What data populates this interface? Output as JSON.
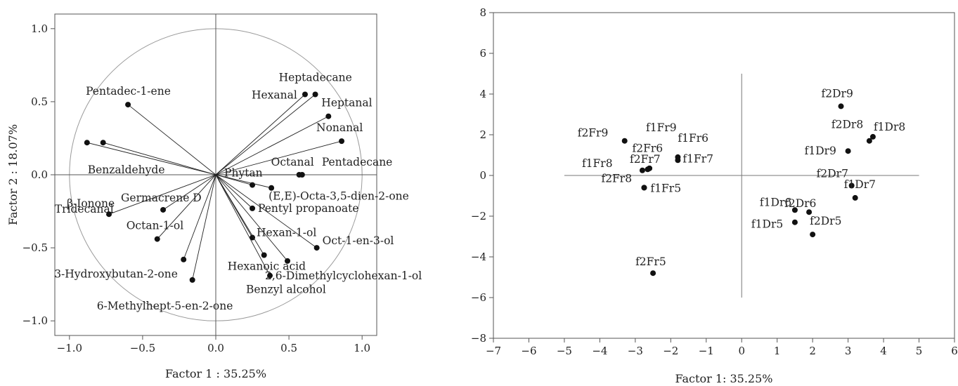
{
  "chart_data": [
    {
      "type": "scatter",
      "xlabel": "Factor 1 : 35.25%",
      "ylabel": "Factor 2 : 18.07%",
      "xlim": [
        -1.1,
        1.1
      ],
      "ylim": [
        -1.1,
        1.1
      ],
      "xticks": [
        "−1.0",
        "−0.5",
        "0.0",
        "0.5",
        "1.0"
      ],
      "xtick_values": [
        -1.0,
        -0.5,
        0.0,
        0.5,
        1.0
      ],
      "yticks": [
        "1.0",
        "0.5",
        "0.0",
        "−0.5",
        "−1.0"
      ],
      "ytick_values": [
        1.0,
        0.5,
        0.0,
        -0.5,
        -1.0
      ],
      "unit_circle": true,
      "vectors_from_origin": true,
      "points": [
        {
          "label": "Pentadec-1-ene",
          "x": -0.6,
          "y": 0.48
        },
        {
          "label": "Benzaldehyde",
          "x": -0.77,
          "y": 0.22
        },
        {
          "label": "Tridecanal",
          "x": -0.88,
          "y": 0.22
        },
        {
          "label": "β-Ionone",
          "x": -0.73,
          "y": -0.27
        },
        {
          "label": "Germacrene D",
          "x": -0.36,
          "y": -0.24
        },
        {
          "label": "Octan-1-ol",
          "x": -0.4,
          "y": -0.44
        },
        {
          "label": "3-Hydroxybutan-2-one",
          "x": -0.22,
          "y": -0.58
        },
        {
          "label": "6-Methylhept-5-en-2-one",
          "x": -0.16,
          "y": -0.72
        },
        {
          "label": "Hexanal",
          "x": 0.61,
          "y": 0.55
        },
        {
          "label": "Heptadecane",
          "x": 0.68,
          "y": 0.55
        },
        {
          "label": "Heptanal",
          "x": 0.77,
          "y": 0.4
        },
        {
          "label": "Nonanal",
          "x": 0.86,
          "y": 0.23
        },
        {
          "label": "Octanal",
          "x": 0.57,
          "y": 0.0
        },
        {
          "label": "Pentadecane",
          "x": 0.59,
          "y": 0.0
        },
        {
          "label": "Phytan",
          "x": 0.25,
          "y": -0.07
        },
        {
          "label": "(E,E)-Octa-3,5-dien-2-one",
          "x": 0.38,
          "y": -0.09
        },
        {
          "label": "Pentyl propanoate",
          "x": 0.25,
          "y": -0.23
        },
        {
          "label": "Hexan-1-ol",
          "x": 0.25,
          "y": -0.43
        },
        {
          "label": "Oct-1-en-3-ol",
          "x": 0.69,
          "y": -0.5
        },
        {
          "label": "Hexanoic acid",
          "x": 0.33,
          "y": -0.55
        },
        {
          "label": "2,6-Dimethylcyclohexan-1-ol",
          "x": 0.49,
          "y": -0.59
        },
        {
          "label": "Benzyl alcohol",
          "x": 0.37,
          "y": -0.69
        }
      ]
    },
    {
      "type": "scatter",
      "xlabel": "Factor 1: 35.25%",
      "ylabel": "",
      "xlim": [
        -7,
        6
      ],
      "ylim": [
        -8,
        8
      ],
      "xticks": [
        "−7",
        "−6",
        "−5",
        "−4",
        "−3",
        "−2",
        "−1",
        "0",
        "1",
        "2",
        "3",
        "4",
        "5",
        "6"
      ],
      "xtick_values": [
        -7,
        -6,
        -5,
        -4,
        -3,
        -2,
        -1,
        0,
        1,
        2,
        3,
        4,
        5,
        6
      ],
      "yticks": [
        "8",
        "6",
        "4",
        "2",
        "0",
        "−2",
        "−4",
        "−6",
        "−8"
      ],
      "ytick_values": [
        8,
        6,
        4,
        2,
        0,
        -2,
        -4,
        -6,
        -8
      ],
      "reference_lines": {
        "horizontal": {
          "y": 0,
          "from": -5,
          "to": 5
        },
        "vertical": {
          "x": 0,
          "from": -6,
          "to": 5
        }
      },
      "points": [
        {
          "label": "f2Fr9",
          "x": -3.3,
          "y": 1.7
        },
        {
          "label": "f1Fr9",
          "x": -2.6,
          "y": 0.35
        },
        {
          "label": "f2Fr6",
          "x": -2.65,
          "y": 0.3
        },
        {
          "label": "f1Fr6",
          "x": -1.8,
          "y": 0.9
        },
        {
          "label": "f1Fr7",
          "x": -1.8,
          "y": 0.75
        },
        {
          "label": "f1Fr8",
          "x": -2.8,
          "y": 0.25
        },
        {
          "label": "f2Fr7",
          "x": -2.6,
          "y": 0.35
        },
        {
          "label": "f2Fr8",
          "x": -2.75,
          "y": -0.6
        },
        {
          "label": "f1Fr5",
          "x": -2.75,
          "y": -0.6
        },
        {
          "label": "f2Fr5",
          "x": -2.5,
          "y": -4.8
        },
        {
          "label": "f2Dr9",
          "x": 2.8,
          "y": 3.4
        },
        {
          "label": "f2Dr8",
          "x": 3.6,
          "y": 1.7
        },
        {
          "label": "f1Dr8",
          "x": 3.7,
          "y": 1.9
        },
        {
          "label": "f1Dr9",
          "x": 3.0,
          "y": 1.2
        },
        {
          "label": "f2Dr7",
          "x": 3.1,
          "y": -0.5
        },
        {
          "label": "f1Dr7",
          "x": 3.2,
          "y": -1.1
        },
        {
          "label": "f1Dr6",
          "x": 1.5,
          "y": -1.7
        },
        {
          "label": "f2Dr6",
          "x": 1.9,
          "y": -1.8
        },
        {
          "label": "f1Dr5",
          "x": 1.5,
          "y": -2.3
        },
        {
          "label": "f2Dr5",
          "x": 2.0,
          "y": -2.9
        }
      ]
    }
  ]
}
